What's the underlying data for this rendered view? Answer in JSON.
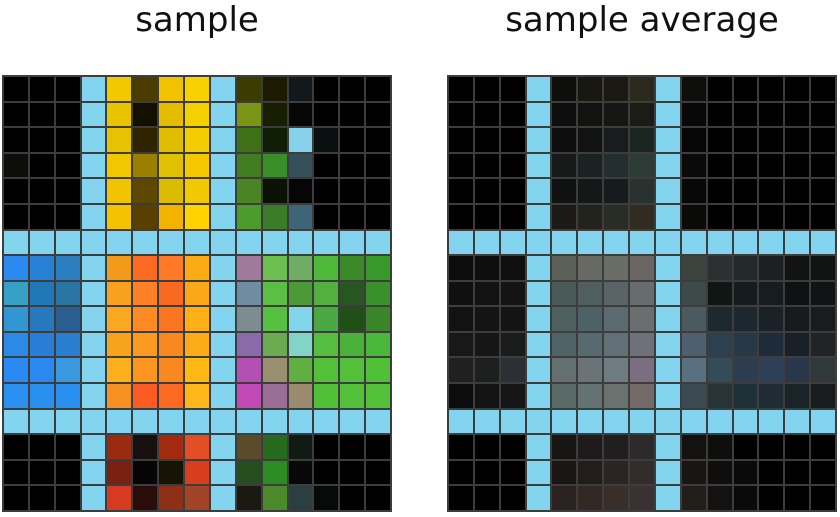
{
  "panels": [
    {
      "title": "sample"
    },
    {
      "title": "sample average"
    }
  ],
  "colors": {
    "separator": "#82d4ef",
    "gridline": "#3d3d3d",
    "background": "#000000"
  }
}
